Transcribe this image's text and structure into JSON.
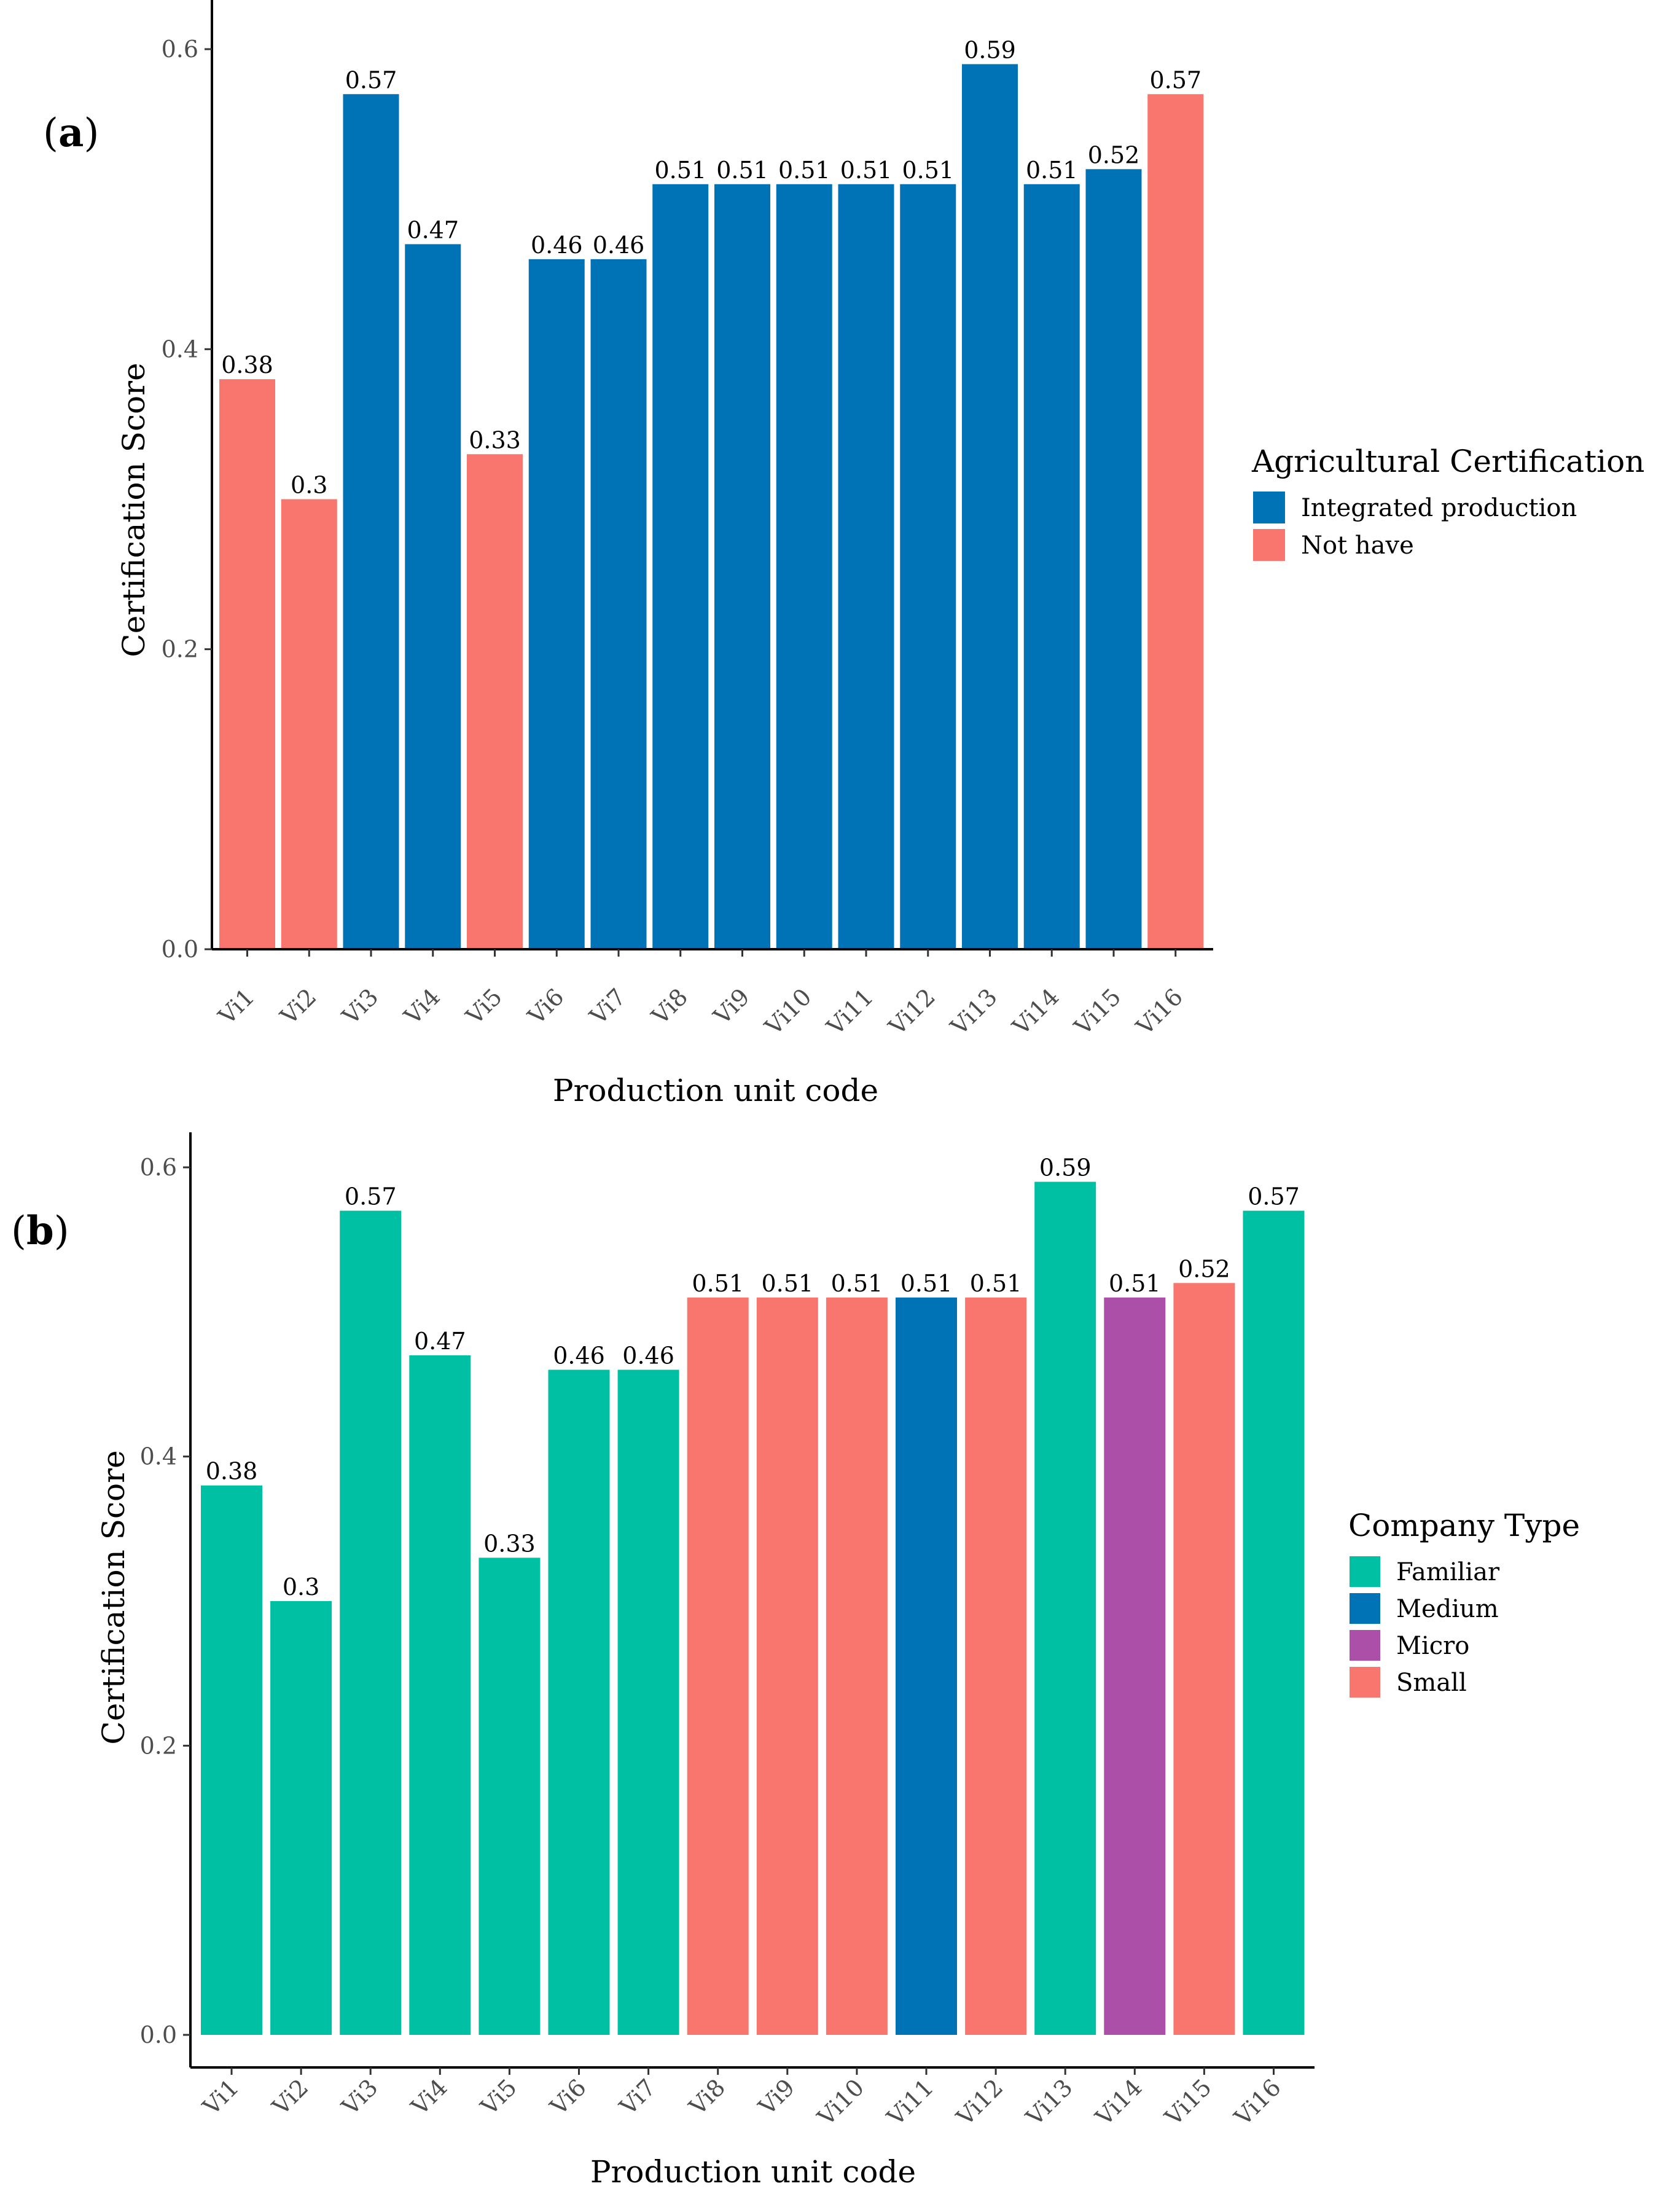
{
  "chart_data": [
    {
      "panel": "(a)",
      "type": "bar",
      "title": "",
      "xlabel": "Production unit code",
      "ylabel": "Certification Score",
      "ylim": [
        0,
        0.6
      ],
      "yticks": [
        "0.0",
        "0.2",
        "0.4",
        "0.6"
      ],
      "grid": false,
      "categories": [
        "Vi1",
        "Vi2",
        "Vi3",
        "Vi4",
        "Vi5",
        "Vi6",
        "Vi7",
        "Vi8",
        "Vi9",
        "Vi10",
        "Vi11",
        "Vi12",
        "Vi13",
        "Vi14",
        "Vi15",
        "Vi16"
      ],
      "values": [
        0.38,
        0.3,
        0.57,
        0.47,
        0.33,
        0.46,
        0.46,
        0.51,
        0.51,
        0.51,
        0.51,
        0.51,
        0.59,
        0.51,
        0.52,
        0.57
      ],
      "value_labels": [
        "0.38",
        "0.3",
        "0.57",
        "0.47",
        "0.33",
        "0.46",
        "0.46",
        "0.51",
        "0.51",
        "0.51",
        "0.51",
        "0.51",
        "0.59",
        "0.51",
        "0.52",
        "0.57"
      ],
      "groups": [
        "Not have",
        "Not have",
        "Integrated production",
        "Integrated production",
        "Not have",
        "Integrated production",
        "Integrated production",
        "Integrated production",
        "Integrated production",
        "Integrated production",
        "Integrated production",
        "Integrated production",
        "Integrated production",
        "Integrated production",
        "Integrated production",
        "Not have"
      ],
      "legend": {
        "title": "Agricultural Certification",
        "position": "right",
        "entries": [
          {
            "label": "Integrated production",
            "color": "#0073b7"
          },
          {
            "label": "Not have",
            "color": "#f8766d"
          }
        ]
      }
    },
    {
      "panel": "(b)",
      "type": "bar",
      "title": "",
      "xlabel": "Production unit code",
      "ylabel": "Certification Score",
      "ylim": [
        0,
        0.6
      ],
      "yticks": [
        "0.0",
        "0.2",
        "0.4",
        "0.6"
      ],
      "grid": false,
      "categories": [
        "Vi1",
        "Vi2",
        "Vi3",
        "Vi4",
        "Vi5",
        "Vi6",
        "Vi7",
        "Vi8",
        "Vi9",
        "Vi10",
        "Vi11",
        "Vi12",
        "Vi13",
        "Vi14",
        "Vi15",
        "Vi16"
      ],
      "values": [
        0.38,
        0.3,
        0.57,
        0.47,
        0.33,
        0.46,
        0.46,
        0.51,
        0.51,
        0.51,
        0.51,
        0.51,
        0.59,
        0.51,
        0.52,
        0.57
      ],
      "value_labels": [
        "0.38",
        "0.3",
        "0.57",
        "0.47",
        "0.33",
        "0.46",
        "0.46",
        "0.51",
        "0.51",
        "0.51",
        "0.51",
        "0.51",
        "0.59",
        "0.51",
        "0.52",
        "0.57"
      ],
      "groups": [
        "Familiar",
        "Familiar",
        "Familiar",
        "Familiar",
        "Familiar",
        "Familiar",
        "Familiar",
        "Small",
        "Small",
        "Small",
        "Medium",
        "Small",
        "Familiar",
        "Micro",
        "Small",
        "Familiar"
      ],
      "legend": {
        "title": "Company Type",
        "position": "right",
        "entries": [
          {
            "label": "Familiar",
            "color": "#00c0a3"
          },
          {
            "label": "Medium",
            "color": "#0073b7"
          },
          {
            "label": "Micro",
            "color": "#ab4fa8"
          },
          {
            "label": "Small",
            "color": "#f8766d"
          }
        ]
      }
    }
  ]
}
